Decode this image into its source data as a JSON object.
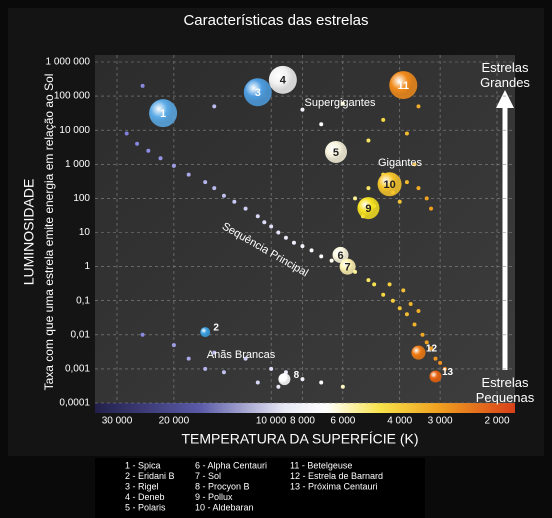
{
  "chart_data": {
    "type": "scatter",
    "title": "Características das estrelas",
    "x_label": "TEMPERATURA DA SUPERFÍCIE (K)",
    "y_label": "LUMINOSIDADE",
    "y_sublabel": "Taxa com que uma estrela emite energia em relação ao Sol",
    "log_x": true,
    "log_y": true,
    "grid": true,
    "xlim": [
      30000,
      2000
    ],
    "ylim": [
      0.0001,
      1000000
    ],
    "xticks": [
      {
        "value": 30000,
        "label": "30 000"
      },
      {
        "value": 20000,
        "label": "20 000"
      },
      {
        "value": 10000,
        "label": "10 000"
      },
      {
        "value": 8000,
        "label": "8 000"
      },
      {
        "value": 6000,
        "label": "6 000"
      },
      {
        "value": 4000,
        "label": "4 000"
      },
      {
        "value": 3000,
        "label": "3 000"
      },
      {
        "value": 2000,
        "label": "2 000"
      }
    ],
    "yticks": [
      {
        "value": 0.0001,
        "label": "0,0001"
      },
      {
        "value": 0.001,
        "label": "0,001"
      },
      {
        "value": 0.01,
        "label": "0,01"
      },
      {
        "value": 0.1,
        "label": "0,1"
      },
      1,
      10,
      100,
      {
        "value": 1000,
        "label": "1 000"
      },
      {
        "value": 10000,
        "label": "10 000"
      },
      {
        "value": 100000,
        "label": "100 000"
      },
      {
        "value": 1000000,
        "label": "1 000 000"
      }
    ],
    "annotations": [
      "Supergigantes",
      "Gigantes",
      "Sequência Principal",
      "Anãs Brancas"
    ],
    "side_labels": [
      "Estrelas Grandes",
      "Estrelas Pequenas"
    ],
    "legend": [
      "1 - Spica",
      "2 - Eridani B",
      "3 - Rigel",
      "4 - Deneb",
      "5 - Polaris",
      "6 - Alpha Centauri",
      "7 - Sol",
      "8 - Procyon B",
      "9 - Pollux",
      "10 - Aldebaran",
      "11 - Betelgeuse",
      "12 - Estrela de Barnard",
      "13 - Próxima Centauri"
    ],
    "series": [
      {
        "x": [
          28000,
          26000,
          24000,
          22000,
          20000,
          18000,
          16000,
          15000,
          14000,
          13000,
          12000,
          11000,
          10500,
          10000,
          9500,
          9000,
          8500,
          8000,
          7500,
          7000,
          6500,
          6000,
          5500,
          5000,
          4800,
          4500,
          4200,
          4000,
          3800,
          3600,
          3400,
          3300,
          3200,
          3100,
          3000,
          2900,
          3500,
          3700,
          3900,
          4300,
          5500,
          5000,
          4500,
          4200,
          4000,
          3800,
          3500,
          3300,
          4800,
          5200,
          3600,
          3200,
          25000,
          15000,
          8000,
          6000,
          4500,
          3500,
          5000,
          3800,
          7000,
          25000,
          20000,
          15000,
          12000,
          10000,
          9000,
          8000,
          7000,
          6000,
          18000,
          14000,
          11000,
          9500,
          16000
        ],
        "values": [
          8000,
          4000,
          2500,
          1500,
          900,
          500,
          300,
          200,
          120,
          80,
          50,
          30,
          20,
          15,
          10,
          7,
          5,
          4,
          3,
          2,
          1.5,
          1.2,
          0.7,
          0.4,
          0.3,
          0.15,
          0.1,
          0.06,
          0.04,
          0.02,
          0.01,
          0.006,
          0.004,
          0.002,
          0.0015,
          0.001,
          0.05,
          0.08,
          0.2,
          0.3,
          100,
          200,
          500,
          150,
          80,
          300,
          200,
          100,
          60,
          30,
          1000,
          50,
          200000,
          50000,
          40000,
          60000,
          20000,
          50000,
          5000,
          8000,
          15000,
          0.01,
          0.005,
          0.003,
          0.002,
          0.001,
          0.0008,
          0.0005,
          0.0004,
          0.0003,
          0.002,
          0.0008,
          0.0004,
          0.0003,
          0.001
        ]
      },
      {
        "labels": [
          "1",
          "2",
          "3",
          "4",
          "5",
          "6",
          "7",
          "8",
          "9",
          "10",
          "11",
          "12",
          "13"
        ],
        "x": [
          21600,
          16000,
          11000,
          9200,
          6300,
          6100,
          5800,
          9100,
          5000,
          4300,
          3900,
          3500,
          3100
        ],
        "values": [
          31600,
          0.012,
          130000,
          300000,
          2300,
          2.2,
          1,
          0.0005,
          52,
          260,
          210000,
          0.003,
          0.0006
        ],
        "sizes": [
          14,
          5,
          14,
          14,
          11,
          8,
          8,
          6,
          11,
          12,
          14,
          7,
          6
        ],
        "colors": [
          "#5aa9e6",
          "#3aa0e0",
          "#4d9de0",
          "#f2f2f2",
          "#f7f3dc",
          "#fffbe0",
          "#fff3b0",
          "#ffffff",
          "#f5e020",
          "#f7c52a",
          "#f08a1a",
          "#f07a10",
          "#e8620e"
        ]
      }
    ]
  }
}
